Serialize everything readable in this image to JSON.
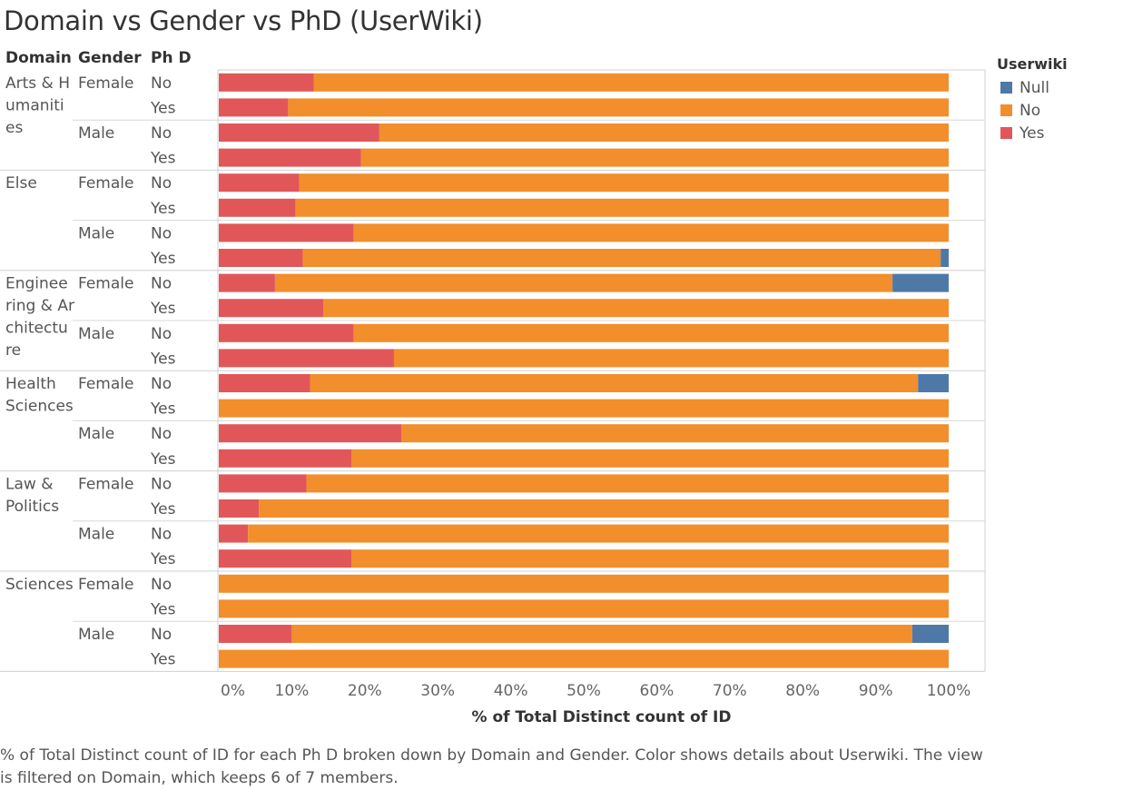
{
  "title": "Domain vs Gender vs PhD (UserWiki)",
  "headers": {
    "domain": "Domain",
    "gender": "Gender",
    "phd": "Ph D"
  },
  "legend": {
    "title": "Userwiki",
    "items": [
      {
        "label": "Null",
        "color": "#4e79a7"
      },
      {
        "label": "No",
        "color": "#f28e2b"
      },
      {
        "label": "Yes",
        "color": "#e15759"
      }
    ]
  },
  "caption": "% of Total Distinct count of ID for each Ph D broken down by Domain and Gender.  Color shows details about Userwiki. The view is filtered on Domain, which keeps 6 of 7 members.",
  "chart_data": {
    "type": "bar",
    "orientation": "horizontal",
    "stacked": true,
    "xlabel": "% of Total Distinct count of ID",
    "xlim": [
      0,
      100
    ],
    "x_ticks": [
      "0%",
      "10%",
      "20%",
      "30%",
      "40%",
      "50%",
      "60%",
      "70%",
      "80%",
      "90%",
      "100%"
    ],
    "series_order": [
      "Yes",
      "No",
      "Null"
    ],
    "domains": [
      {
        "label_lines": [
          "Arts & H",
          "umaniti",
          "es"
        ],
        "genders": [
          {
            "gender": "Female",
            "rows": [
              {
                "phd": "No",
                "yes": 13,
                "no": 87,
                "null": 0
              },
              {
                "phd": "Yes",
                "yes": 9.5,
                "no": 90.5,
                "null": 0
              }
            ]
          },
          {
            "gender": "Male",
            "rows": [
              {
                "phd": "No",
                "yes": 22,
                "no": 78,
                "null": 0
              },
              {
                "phd": "Yes",
                "yes": 19.5,
                "no": 80.5,
                "null": 0
              }
            ]
          }
        ]
      },
      {
        "label_lines": [
          "Else"
        ],
        "genders": [
          {
            "gender": "Female",
            "rows": [
              {
                "phd": "No",
                "yes": 11,
                "no": 89,
                "null": 0
              },
              {
                "phd": "Yes",
                "yes": 10.5,
                "no": 89.5,
                "null": 0
              }
            ]
          },
          {
            "gender": "Male",
            "rows": [
              {
                "phd": "No",
                "yes": 18.5,
                "no": 81.5,
                "null": 0
              },
              {
                "phd": "Yes",
                "yes": 11.5,
                "no": 87.4,
                "null": 1.1
              }
            ]
          }
        ]
      },
      {
        "label_lines": [
          "Enginee",
          "ring & Ar",
          "chitectu",
          "re"
        ],
        "genders": [
          {
            "gender": "Female",
            "rows": [
              {
                "phd": "No",
                "yes": 7.7,
                "no": 84.6,
                "null": 7.7
              },
              {
                "phd": "Yes",
                "yes": 14.3,
                "no": 85.7,
                "null": 0
              }
            ]
          },
          {
            "gender": "Male",
            "rows": [
              {
                "phd": "No",
                "yes": 18.5,
                "no": 81.5,
                "null": 0
              },
              {
                "phd": "Yes",
                "yes": 24,
                "no": 76,
                "null": 0
              }
            ]
          }
        ]
      },
      {
        "label_lines": [
          "Health",
          "Sciences"
        ],
        "genders": [
          {
            "gender": "Female",
            "rows": [
              {
                "phd": "No",
                "yes": 12.5,
                "no": 83.3,
                "null": 4.2
              },
              {
                "phd": "Yes",
                "yes": 0,
                "no": 100,
                "null": 0
              }
            ]
          },
          {
            "gender": "Male",
            "rows": [
              {
                "phd": "No",
                "yes": 25,
                "no": 75,
                "null": 0
              },
              {
                "phd": "Yes",
                "yes": 18.2,
                "no": 81.8,
                "null": 0
              }
            ]
          }
        ]
      },
      {
        "label_lines": [
          "Law &",
          "Politics"
        ],
        "genders": [
          {
            "gender": "Female",
            "rows": [
              {
                "phd": "No",
                "yes": 12,
                "no": 88,
                "null": 0
              },
              {
                "phd": "Yes",
                "yes": 5.5,
                "no": 94.5,
                "null": 0
              }
            ]
          },
          {
            "gender": "Male",
            "rows": [
              {
                "phd": "No",
                "yes": 4,
                "no": 96,
                "null": 0
              },
              {
                "phd": "Yes",
                "yes": 18.2,
                "no": 81.8,
                "null": 0
              }
            ]
          }
        ]
      },
      {
        "label_lines": [
          "Sciences"
        ],
        "genders": [
          {
            "gender": "Female",
            "rows": [
              {
                "phd": "No",
                "yes": 0,
                "no": 100,
                "null": 0
              },
              {
                "phd": "Yes",
                "yes": 0,
                "no": 100,
                "null": 0
              }
            ]
          },
          {
            "gender": "Male",
            "rows": [
              {
                "phd": "No",
                "yes": 10,
                "no": 85,
                "null": 5
              },
              {
                "phd": "Yes",
                "yes": 0,
                "no": 100,
                "null": 0
              }
            ]
          }
        ]
      }
    ]
  }
}
